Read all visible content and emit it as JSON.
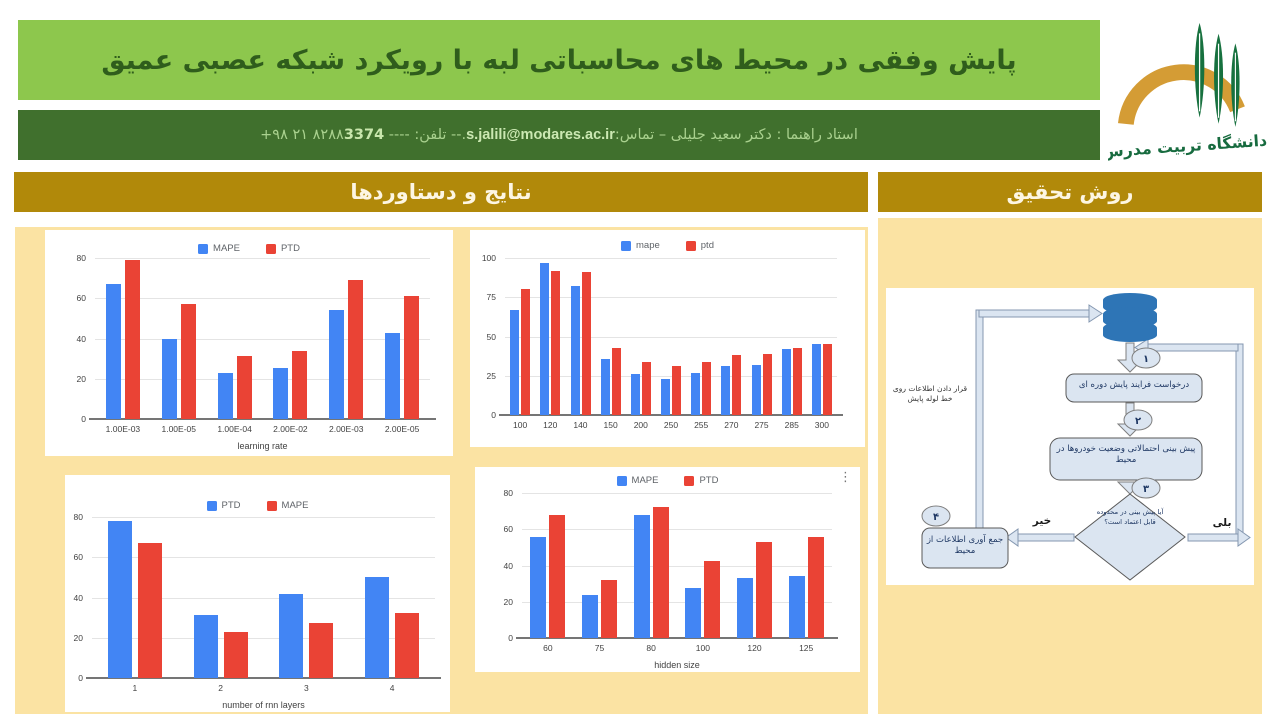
{
  "colors": {
    "header_green": "#8DC74D",
    "title_green": "#2F5D1C",
    "bar_dark_green": "#40702D",
    "contact_text_green": "#A9D18E",
    "section_gold": "#B1890A",
    "panel_yellow": "#FBE3A3",
    "chart_blue": "#4285F4",
    "chart_red": "#EA4335",
    "flow_node_fill": "#DBE5F1",
    "flow_db_blue": "#2E75B6"
  },
  "header": {
    "title": "پایش وفقی در محیط های محاسباتی لبه با رویکرد شبکه عصبی عمیق",
    "contact": {
      "prefix": "استاد راهنما : دکتر سعید جلیلی – تماس:",
      "email": "s.jalili@modares.ac.ir",
      "middle": ".-- تلفن: ----",
      "phone_prefix": "+۹۸ ۲۱ ۸۲۸۸",
      "phone_bold": "3374"
    }
  },
  "logo": {
    "university": "دانشگاه تربیت مدرس"
  },
  "sections": {
    "results": {
      "title": "نتایج و دستاوردها"
    },
    "method": {
      "title": "روش تحقیق"
    }
  },
  "icons": {
    "chart_menu": "⋮"
  },
  "chart_data": [
    {
      "type": "bar",
      "categories": [
        "1.00E-03",
        "1.00E-05",
        "1.00E-04",
        "2.00E-02",
        "2.00E-03",
        "2.00E-05"
      ],
      "series": [
        {
          "name": "MAPE",
          "color": "#4285F4",
          "values": [
            67,
            40,
            23,
            25.5,
            54,
            43
          ]
        },
        {
          "name": "PTD",
          "color": "#EA4335",
          "values": [
            79,
            57,
            31.5,
            34,
            69,
            61
          ]
        }
      ],
      "title": "",
      "xlabel": "learning rate",
      "ylabel": "",
      "ylim": [
        0,
        80
      ],
      "yticks": [
        0,
        20,
        40,
        60,
        80
      ],
      "grid": true,
      "legend_position": "top"
    },
    {
      "type": "bar",
      "categories": [
        "100",
        "120",
        "140",
        "150",
        "200",
        "250",
        "255",
        "270",
        "275",
        "285",
        "300"
      ],
      "series": [
        {
          "name": "mape",
          "color": "#4285F4",
          "values": [
            67,
            97,
            82,
            36,
            26,
            23,
            26.5,
            31,
            32,
            42,
            45.5
          ]
        },
        {
          "name": "ptd",
          "color": "#EA4335",
          "values": [
            80,
            92,
            91,
            42.5,
            34,
            31.5,
            34,
            38,
            39,
            43,
            45.5
          ]
        }
      ],
      "title": "",
      "xlabel": "",
      "ylabel": "",
      "ylim": [
        0,
        100
      ],
      "yticks": [
        0,
        25,
        50,
        75,
        100
      ],
      "grid": true,
      "legend_position": "top"
    },
    {
      "type": "bar",
      "categories": [
        "1",
        "2",
        "3",
        "4"
      ],
      "series": [
        {
          "name": "PTD",
          "color": "#4285F4",
          "values": [
            78,
            31.5,
            42,
            50
          ]
        },
        {
          "name": "MAPE",
          "color": "#EA4335",
          "values": [
            67,
            23,
            27.5,
            32.5
          ]
        }
      ],
      "title": "",
      "xlabel": "number of rnn layers",
      "ylabel": "",
      "ylim": [
        0,
        80
      ],
      "yticks": [
        0,
        20,
        40,
        60,
        80
      ],
      "grid": true,
      "legend_position": "top"
    },
    {
      "type": "bar",
      "categories": [
        "60",
        "75",
        "80",
        "100",
        "120",
        "125"
      ],
      "series": [
        {
          "name": "MAPE",
          "color": "#4285F4",
          "values": [
            56,
            23.5,
            68,
            27.5,
            33,
            34.5
          ]
        },
        {
          "name": "PTD",
          "color": "#EA4335",
          "values": [
            68,
            32,
            72.5,
            42.5,
            53,
            56
          ]
        }
      ],
      "title": "",
      "xlabel": "hidden size",
      "ylabel": "",
      "ylim": [
        0,
        80
      ],
      "yticks": [
        0,
        20,
        40,
        60,
        80
      ],
      "grid": true,
      "legend_position": "top"
    }
  ],
  "flowchart": {
    "steps": [
      "۱",
      "۲",
      "۳",
      "۴"
    ],
    "nodes": {
      "box1": "درخواست فرایند پایش دوره ای",
      "box2": "پیش بینی احتمالاتی وضعیت خودروها در محیط",
      "decision": "آیا پیش بینی در محدوده قابل اعتماد است؟",
      "box4": "جمع آوری اطلاعات از محیط"
    },
    "labels": {
      "yes": "بلی",
      "no": "خیر",
      "pipeline": "قرار دادن اطلاعات روی خط لوله پایش"
    }
  }
}
